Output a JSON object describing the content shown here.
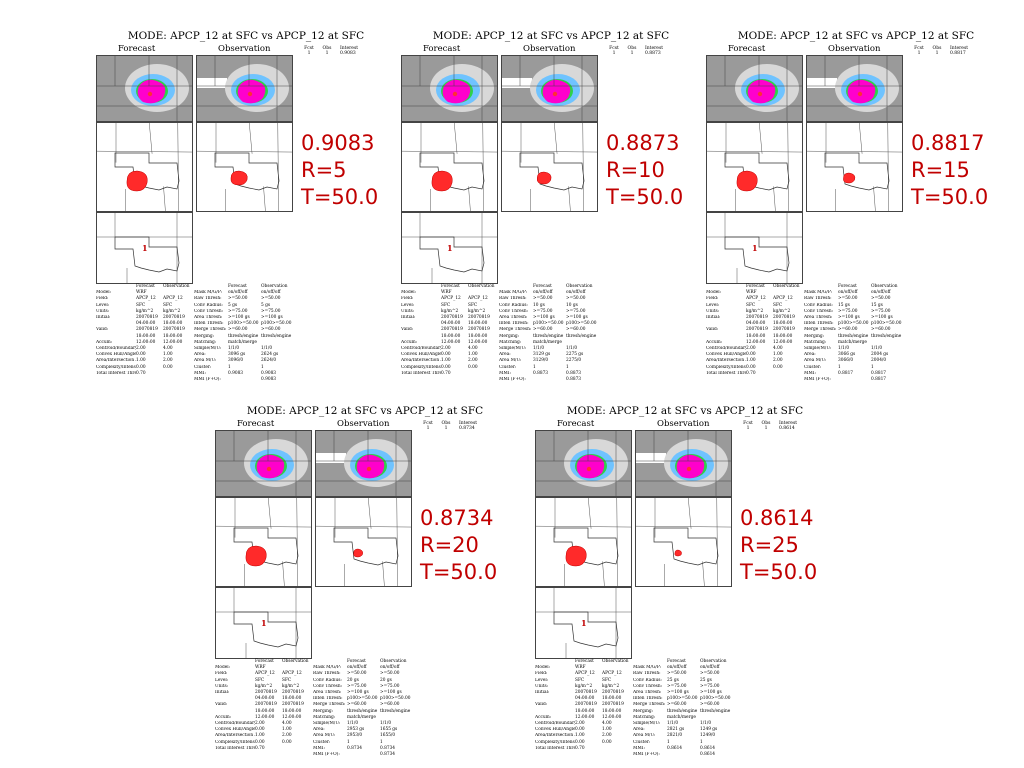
{
  "colors": {
    "accent": "#c00000",
    "object": "#ff2a2a",
    "precip": "#ff00cc"
  },
  "legend": {
    "headers": [
      "Fcst",
      "Obs",
      "Interest"
    ]
  },
  "stat_labels_left": [
    "",
    "Model:",
    "Field:",
    "Level:",
    "Units:",
    "Initial:",
    "",
    "Valid:",
    "",
    "Accum:",
    "",
    "Centroid/Boundary:",
    "Convex Hull/Angle:",
    "Area/Intersection Area:",
    "Complexity/Intensity:",
    "Total Interest Thresh:"
  ],
  "stat_labels_right": [
    "",
    "Mask M/G/P:",
    "Raw Thresh:",
    "Conv Radius:",
    "Conv Thresh:",
    "Area Thresh:",
    "Inten Thresh:",
    "Merge Thresh:",
    "Merging:",
    "Matching:",
    "Simple/M/U:",
    "Area:",
    "Area M/U:",
    "Cluster:",
    "MMI:",
    "MMI (F+O):"
  ],
  "panels": [
    {
      "title": "MODE: APCP_12 at SFC vs APCP_12 at SFC",
      "forecast_label": "Forecast",
      "observation_label": "Observation",
      "legend_values": [
        "1",
        "1",
        "0.9083"
      ],
      "cluster_label": "1",
      "overlay": {
        "interest": "0.9083",
        "radius": "R=5",
        "threshold": "T=50.0"
      },
      "stats_left": [
        [
          "",
          "Forecast",
          "Observation"
        ],
        [
          "",
          "WRF",
          ""
        ],
        [
          "",
          "APCP_12",
          "APCP_12"
        ],
        [
          "",
          "SFC",
          "SFC"
        ],
        [
          "",
          "kg/m^2",
          "kg/m^2"
        ],
        [
          "",
          "20070819",
          "20070819"
        ],
        [
          "",
          "04:00:00",
          "18:00:00"
        ],
        [
          "",
          "20070819",
          "20070819"
        ],
        [
          "",
          "18:00:00",
          "18:00:00"
        ],
        [
          "",
          "12:00:00",
          "12:00:00"
        ],
        [
          "",
          "",
          ""
        ],
        [
          "",
          "2.00",
          "4.00"
        ],
        [
          "",
          "0.00",
          "1.00"
        ],
        [
          "",
          "1.00",
          "2.00"
        ],
        [
          "",
          "0.00",
          "0.00"
        ],
        [
          "",
          "0.70",
          ""
        ]
      ],
      "stats_right": [
        [
          "",
          "Forecast",
          "Observation"
        ],
        [
          "",
          "on/off/off",
          "on/off/off"
        ],
        [
          "",
          ">=50.00",
          ">=50.00"
        ],
        [
          "",
          "5 gs",
          "5 gs"
        ],
        [
          "",
          ">=75.00",
          ">=75.00"
        ],
        [
          "",
          ">=100 gs",
          ">=100 gs"
        ],
        [
          "",
          "p100>=50.00",
          "p100>=50.00"
        ],
        [
          "",
          ">=60.00",
          ">=60.00"
        ],
        [
          "",
          "thresh/engine",
          "thresh/engine"
        ],
        [
          "",
          "match/merge",
          ""
        ],
        [
          "",
          "1/1/0",
          "1/1/0"
        ],
        [
          "",
          "3096 gs",
          "2624 gs"
        ],
        [
          "",
          "3096/0",
          "2624/0"
        ],
        [
          "",
          "1",
          "1"
        ],
        [
          "",
          "0.9083",
          "0.9083"
        ],
        [
          "",
          "",
          "0.9083"
        ]
      ]
    },
    {
      "title": "MODE: APCP_12 at SFC vs APCP_12 at SFC",
      "forecast_label": "Forecast",
      "observation_label": "Observation",
      "legend_values": [
        "1",
        "1",
        "0.8873"
      ],
      "cluster_label": "1",
      "overlay": {
        "interest": "0.8873",
        "radius": "R=10",
        "threshold": "T=50.0"
      },
      "stats_left": [
        [
          "",
          "Forecast",
          "Observation"
        ],
        [
          "",
          "WRF",
          ""
        ],
        [
          "",
          "APCP_12",
          "APCP_12"
        ],
        [
          "",
          "SFC",
          "SFC"
        ],
        [
          "",
          "kg/m^2",
          "kg/m^2"
        ],
        [
          "",
          "20070819",
          "20070819"
        ],
        [
          "",
          "04:00:00",
          "18:00:00"
        ],
        [
          "",
          "20070819",
          "20070819"
        ],
        [
          "",
          "18:00:00",
          "18:00:00"
        ],
        [
          "",
          "12:00:00",
          "12:00:00"
        ],
        [
          "",
          "",
          ""
        ],
        [
          "",
          "2.00",
          "4.00"
        ],
        [
          "",
          "0.00",
          "1.00"
        ],
        [
          "",
          "1.00",
          "2.00"
        ],
        [
          "",
          "0.00",
          "0.00"
        ],
        [
          "",
          "0.70",
          ""
        ]
      ],
      "stats_right": [
        [
          "",
          "Forecast",
          "Observation"
        ],
        [
          "",
          "on/off/off",
          "on/off/off"
        ],
        [
          "",
          ">=50.00",
          ">=50.00"
        ],
        [
          "",
          "10 gs",
          "10 gs"
        ],
        [
          "",
          ">=75.00",
          ">=75.00"
        ],
        [
          "",
          ">=100 gs",
          ">=100 gs"
        ],
        [
          "",
          "p100>=50.00",
          "p100>=50.00"
        ],
        [
          "",
          ">=60.00",
          ">=60.00"
        ],
        [
          "",
          "thresh/engine",
          "thresh/engine"
        ],
        [
          "",
          "match/merge",
          ""
        ],
        [
          "",
          "1/1/0",
          "1/1/0"
        ],
        [
          "",
          "3129 gs",
          "2275 gs"
        ],
        [
          "",
          "3129/0",
          "2275/0"
        ],
        [
          "",
          "1",
          "1"
        ],
        [
          "",
          "0.8873",
          "0.8873"
        ],
        [
          "",
          "",
          "0.8873"
        ]
      ]
    },
    {
      "title": "MODE: APCP_12 at SFC vs APCP_12 at SFC",
      "forecast_label": "Forecast",
      "observation_label": "Observation",
      "legend_values": [
        "1",
        "1",
        "0.8817"
      ],
      "cluster_label": "1",
      "overlay": {
        "interest": "0.8817",
        "radius": "R=15",
        "threshold": "T=50.0"
      },
      "stats_left": [
        [
          "",
          "Forecast",
          "Observation"
        ],
        [
          "",
          "WRF",
          ""
        ],
        [
          "",
          "APCP_12",
          "APCP_12"
        ],
        [
          "",
          "SFC",
          "SFC"
        ],
        [
          "",
          "kg/m^2",
          "kg/m^2"
        ],
        [
          "",
          "20070819",
          "20070819"
        ],
        [
          "",
          "04:00:00",
          "18:00:00"
        ],
        [
          "",
          "20070819",
          "20070819"
        ],
        [
          "",
          "18:00:00",
          "18:00:00"
        ],
        [
          "",
          "12:00:00",
          "12:00:00"
        ],
        [
          "",
          "",
          ""
        ],
        [
          "",
          "2.00",
          "4.00"
        ],
        [
          "",
          "0.00",
          "1.00"
        ],
        [
          "",
          "1.00",
          "2.00"
        ],
        [
          "",
          "0.00",
          "0.00"
        ],
        [
          "",
          "0.70",
          ""
        ]
      ],
      "stats_right": [
        [
          "",
          "Forecast",
          "Observation"
        ],
        [
          "",
          "on/off/off",
          "on/off/off"
        ],
        [
          "",
          ">=50.00",
          ">=50.00"
        ],
        [
          "",
          "15 gs",
          "15 gs"
        ],
        [
          "",
          ">=75.00",
          ">=75.00"
        ],
        [
          "",
          ">=100 gs",
          ">=100 gs"
        ],
        [
          "",
          "p100>=50.00",
          "p100>=50.00"
        ],
        [
          "",
          ">=60.00",
          ">=60.00"
        ],
        [
          "",
          "thresh/engine",
          "thresh/engine"
        ],
        [
          "",
          "match/merge",
          ""
        ],
        [
          "",
          "1/1/0",
          "1/1/0"
        ],
        [
          "",
          "3066 gs",
          "2004 gs"
        ],
        [
          "",
          "3066/0",
          "2004/0"
        ],
        [
          "",
          "1",
          "1"
        ],
        [
          "",
          "0.8817",
          "0.8817"
        ],
        [
          "",
          "",
          "0.8817"
        ]
      ]
    },
    {
      "title": "MODE: APCP_12 at SFC vs APCP_12 at SFC",
      "forecast_label": "Forecast",
      "observation_label": "Observation",
      "legend_values": [
        "1",
        "1",
        "0.8734"
      ],
      "cluster_label": "1",
      "overlay": {
        "interest": "0.8734",
        "radius": "R=20",
        "threshold": "T=50.0"
      },
      "stats_left": [
        [
          "",
          "Forecast",
          "Observation"
        ],
        [
          "",
          "WRF",
          ""
        ],
        [
          "",
          "APCP_12",
          "APCP_12"
        ],
        [
          "",
          "SFC",
          "SFC"
        ],
        [
          "",
          "kg/m^2",
          "kg/m^2"
        ],
        [
          "",
          "20070819",
          "20070819"
        ],
        [
          "",
          "04:00:00",
          "18:00:00"
        ],
        [
          "",
          "20070819",
          "20070819"
        ],
        [
          "",
          "18:00:00",
          "18:00:00"
        ],
        [
          "",
          "12:00:00",
          "12:00:00"
        ],
        [
          "",
          "",
          ""
        ],
        [
          "",
          "2.00",
          "4.00"
        ],
        [
          "",
          "0.00",
          "1.00"
        ],
        [
          "",
          "1.00",
          "2.00"
        ],
        [
          "",
          "0.00",
          "0.00"
        ],
        [
          "",
          "0.70",
          ""
        ]
      ],
      "stats_right": [
        [
          "",
          "Forecast",
          "Observation"
        ],
        [
          "",
          "on/off/off",
          "on/off/off"
        ],
        [
          "",
          ">=50.00",
          ">=50.00"
        ],
        [
          "",
          "20 gs",
          "20 gs"
        ],
        [
          "",
          ">=75.00",
          ">=75.00"
        ],
        [
          "",
          ">=100 gs",
          ">=100 gs"
        ],
        [
          "",
          "p100>=50.00",
          "p100>=50.00"
        ],
        [
          "",
          ">=60.00",
          ">=60.00"
        ],
        [
          "",
          "thresh/engine",
          "thresh/engine"
        ],
        [
          "",
          "match/merge",
          ""
        ],
        [
          "",
          "1/1/0",
          "1/1/0"
        ],
        [
          "",
          "2953 gs",
          "1655 gs"
        ],
        [
          "",
          "2953/0",
          "1655/0"
        ],
        [
          "",
          "1",
          "1"
        ],
        [
          "",
          "0.8734",
          "0.8734"
        ],
        [
          "",
          "",
          "0.8734"
        ]
      ]
    },
    {
      "title": "MODE: APCP_12 at SFC vs APCP_12 at SFC",
      "forecast_label": "Forecast",
      "observation_label": "Observation",
      "legend_values": [
        "1",
        "1",
        "0.8614"
      ],
      "cluster_label": "1",
      "overlay": {
        "interest": "0.8614",
        "radius": "R=25",
        "threshold": "T=50.0"
      },
      "stats_left": [
        [
          "",
          "Forecast",
          "Observation"
        ],
        [
          "",
          "WRF",
          ""
        ],
        [
          "",
          "APCP_12",
          "APCP_12"
        ],
        [
          "",
          "SFC",
          "SFC"
        ],
        [
          "",
          "kg/m^2",
          "kg/m^2"
        ],
        [
          "",
          "20070819",
          "20070819"
        ],
        [
          "",
          "04:00:00",
          "18:00:00"
        ],
        [
          "",
          "20070819",
          "20070819"
        ],
        [
          "",
          "18:00:00",
          "18:00:00"
        ],
        [
          "",
          "12:00:00",
          "12:00:00"
        ],
        [
          "",
          "",
          ""
        ],
        [
          "",
          "2.00",
          "4.00"
        ],
        [
          "",
          "0.00",
          "1.00"
        ],
        [
          "",
          "1.00",
          "2.00"
        ],
        [
          "",
          "0.00",
          "0.00"
        ],
        [
          "",
          "0.70",
          ""
        ]
      ],
      "stats_right": [
        [
          "",
          "Forecast",
          "Observation"
        ],
        [
          "",
          "on/off/off",
          "on/off/off"
        ],
        [
          "",
          ">=50.00",
          ">=50.00"
        ],
        [
          "",
          "25 gs",
          "25 gs"
        ],
        [
          "",
          ">=75.00",
          ">=75.00"
        ],
        [
          "",
          ">=100 gs",
          ">=100 gs"
        ],
        [
          "",
          "p100>=50.00",
          "p100>=50.00"
        ],
        [
          "",
          ">=60.00",
          ">=60.00"
        ],
        [
          "",
          "thresh/engine",
          "thresh/engine"
        ],
        [
          "",
          "match/merge",
          ""
        ],
        [
          "",
          "1/1/0",
          "1/1/0"
        ],
        [
          "",
          "2821 gs",
          "1249 gs"
        ],
        [
          "",
          "2821/0",
          "1249/0"
        ],
        [
          "",
          "1",
          "1"
        ],
        [
          "",
          "0.8614",
          "0.8614"
        ],
        [
          "",
          "",
          "0.8614"
        ]
      ]
    }
  ]
}
